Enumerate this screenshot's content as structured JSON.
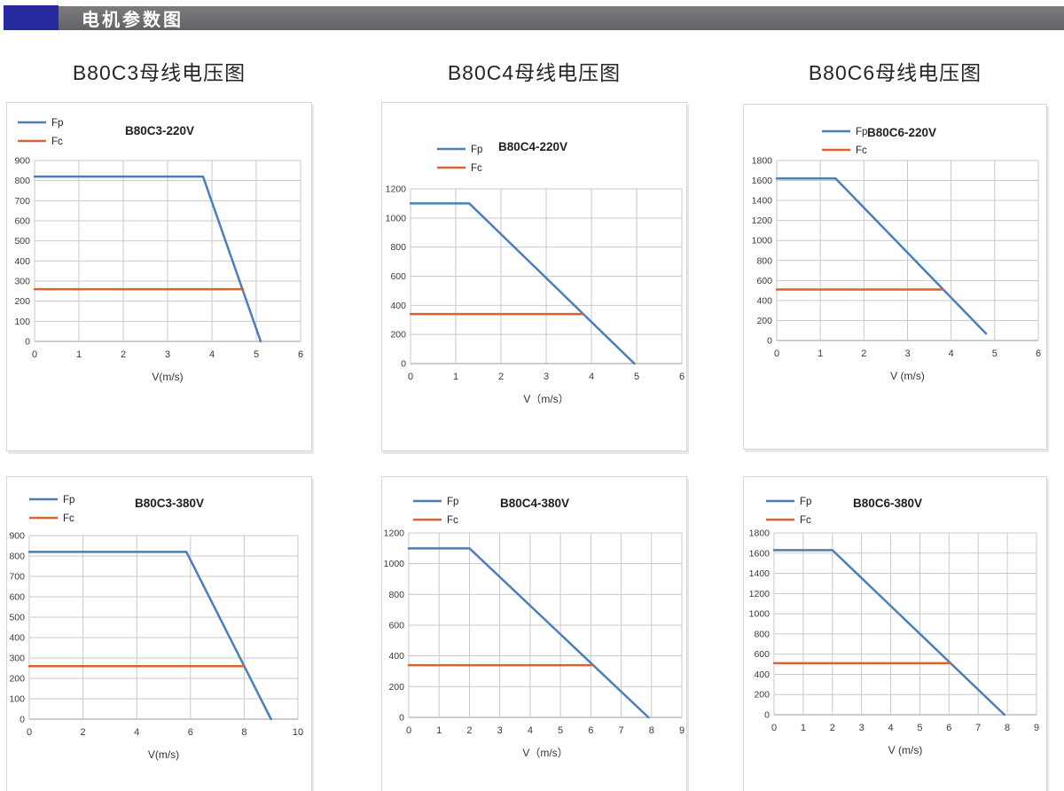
{
  "header": {
    "title": "电机参数图"
  },
  "columns": [
    {
      "title": "B80C3母线电压图"
    },
    {
      "title": "B80C4母线电压图"
    },
    {
      "title": "B80C6母线电压图"
    }
  ],
  "colors": {
    "fp": "#4a7ebc",
    "fc": "#dd6230",
    "grid": "#c9c9c9",
    "axis": "#9b9b9b",
    "tick_text": "#3a3a3a",
    "title_text": "#1f1f1f",
    "header_navy": "#252a9e",
    "header_gray": "#6e6e72"
  },
  "chart_data": [
    {
      "type": "line",
      "title": "B80C3-220V",
      "xlabel": "V(m/s)",
      "legend": [
        "Fp",
        "Fc"
      ],
      "legend_position": "top-left",
      "grid": true,
      "xlim": [
        0,
        6
      ],
      "xticks": [
        0,
        1,
        2,
        3,
        4,
        5,
        6
      ],
      "ylim": [
        0,
        900
      ],
      "yticks": [
        0,
        100,
        200,
        300,
        400,
        500,
        600,
        700,
        800,
        900
      ],
      "series": [
        {
          "name": "Fp",
          "color_key": "fp",
          "points": [
            [
              0,
              820
            ],
            [
              3.8,
              820
            ],
            [
              5.1,
              0
            ]
          ]
        },
        {
          "name": "Fc",
          "color_key": "fc",
          "points": [
            [
              0,
              260
            ],
            [
              4.7,
              260
            ]
          ]
        }
      ]
    },
    {
      "type": "line",
      "title": "B80C4-220V",
      "xlabel": "V（m/s）",
      "legend": [
        "Fp",
        "Fc"
      ],
      "legend_position": "top-left",
      "grid": true,
      "xlim": [
        0,
        6
      ],
      "xticks": [
        0,
        1,
        2,
        3,
        4,
        5,
        6
      ],
      "ylim": [
        0,
        1200
      ],
      "yticks": [
        0,
        200,
        400,
        600,
        800,
        1000,
        1200
      ],
      "series": [
        {
          "name": "Fp",
          "color_key": "fp",
          "points": [
            [
              0,
              1100
            ],
            [
              1.3,
              1100
            ],
            [
              4.95,
              0
            ]
          ]
        },
        {
          "name": "Fc",
          "color_key": "fc",
          "points": [
            [
              0,
              340
            ],
            [
              3.8,
              340
            ]
          ]
        }
      ]
    },
    {
      "type": "line",
      "title": "B80C6-220V",
      "xlabel": "V (m/s)",
      "legend": [
        "Fp",
        "Fc"
      ],
      "legend_position": "top-left",
      "grid": true,
      "xlim": [
        0,
        6
      ],
      "xticks": [
        0,
        1,
        2,
        3,
        4,
        5,
        6
      ],
      "ylim": [
        0,
        1800
      ],
      "yticks": [
        0,
        200,
        400,
        600,
        800,
        1000,
        1200,
        1400,
        1600,
        1800
      ],
      "series": [
        {
          "name": "Fp",
          "color_key": "fp",
          "points": [
            [
              0,
              1620
            ],
            [
              1.35,
              1620
            ],
            [
              4.8,
              70
            ]
          ]
        },
        {
          "name": "Fc",
          "color_key": "fc",
          "points": [
            [
              0,
              510
            ],
            [
              3.8,
              510
            ]
          ]
        }
      ]
    },
    {
      "type": "line",
      "title": "B80C3-380V",
      "xlabel": "V(m/s)",
      "legend": [
        "Fp",
        "Fc"
      ],
      "legend_position": "top-left",
      "grid": true,
      "xlim": [
        0,
        10
      ],
      "xticks": [
        0,
        2,
        4,
        6,
        8,
        10
      ],
      "ylim": [
        0,
        900
      ],
      "yticks": [
        0,
        100,
        200,
        300,
        400,
        500,
        600,
        700,
        800,
        900
      ],
      "series": [
        {
          "name": "Fp",
          "color_key": "fp",
          "points": [
            [
              0,
              820
            ],
            [
              5.85,
              820
            ],
            [
              9,
              0
            ]
          ]
        },
        {
          "name": "Fc",
          "color_key": "fc",
          "points": [
            [
              0,
              260
            ],
            [
              8,
              260
            ]
          ]
        }
      ]
    },
    {
      "type": "line",
      "title": "B80C4-380V",
      "xlabel": "V（m/s）",
      "legend": [
        "Fp",
        "Fc"
      ],
      "legend_position": "top-left",
      "grid": true,
      "xlim": [
        0,
        9
      ],
      "xticks": [
        0,
        1,
        2,
        3,
        4,
        5,
        6,
        7,
        8,
        9
      ],
      "ylim": [
        0,
        1200
      ],
      "yticks": [
        0,
        200,
        400,
        600,
        800,
        1000,
        1200
      ],
      "series": [
        {
          "name": "Fp",
          "color_key": "fp",
          "points": [
            [
              0,
              1100
            ],
            [
              2,
              1100
            ],
            [
              7.9,
              0
            ]
          ]
        },
        {
          "name": "Fc",
          "color_key": "fc",
          "points": [
            [
              0,
              340
            ],
            [
              6.05,
              340
            ]
          ]
        }
      ]
    },
    {
      "type": "line",
      "title": "B80C6-380V",
      "xlabel": "V (m/s)",
      "legend": [
        "Fp",
        "Fc"
      ],
      "legend_position": "top-left",
      "grid": true,
      "xlim": [
        0,
        9
      ],
      "xticks": [
        0,
        1,
        2,
        3,
        4,
        5,
        6,
        7,
        8,
        9
      ],
      "ylim": [
        0,
        1800
      ],
      "yticks": [
        0,
        200,
        400,
        600,
        800,
        1000,
        1200,
        1400,
        1600,
        1800
      ],
      "series": [
        {
          "name": "Fp",
          "color_key": "fp",
          "points": [
            [
              0,
              1630
            ],
            [
              2,
              1630
            ],
            [
              7.9,
              0
            ]
          ]
        },
        {
          "name": "Fc",
          "color_key": "fc",
          "points": [
            [
              0,
              510
            ],
            [
              6.05,
              510
            ]
          ]
        }
      ]
    }
  ]
}
